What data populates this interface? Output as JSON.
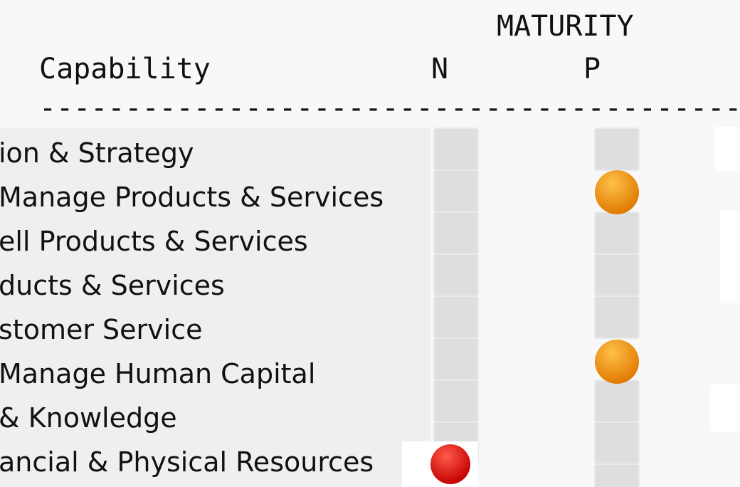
{
  "table": {
    "group_header": "MATURITY",
    "columns": [
      "Capability",
      "N",
      "P"
    ],
    "rule": "-----------------------------------------",
    "rows": [
      "ion & Strategy",
      "Manage Products & Services",
      "ell Products & Services",
      "ducts & Services",
      "stomer Service",
      "Manage Human Capital",
      "& Knowledge",
      "ancial & Physical Resources"
    ]
  }
}
